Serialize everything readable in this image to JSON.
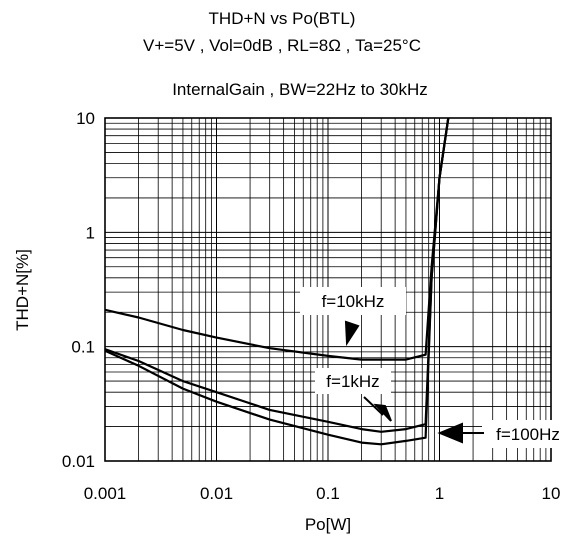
{
  "chart_data": {
    "type": "line",
    "title": "THD+N vs Po(BTL)",
    "subtitle": "V+=5V , Vol=0dB , RL=8Ω , Ta=25°C",
    "condition": "InternalGain , BW=22Hz to 30kHz",
    "xlabel": "Po[W]",
    "ylabel": "THD+N[%]",
    "xscale": "log",
    "yscale": "log",
    "xlim": [
      0.001,
      10
    ],
    "ylim": [
      0.01,
      10
    ],
    "grid": true,
    "x_ticks": [
      "0.001",
      "0.01",
      "0.1",
      "1",
      "10"
    ],
    "y_ticks": [
      "0.01",
      "0.1",
      "1",
      "10"
    ],
    "series": [
      {
        "name": "f=10kHz",
        "points": [
          [
            0.001,
            0.21
          ],
          [
            0.002,
            0.18
          ],
          [
            0.005,
            0.14
          ],
          [
            0.01,
            0.12
          ],
          [
            0.03,
            0.097
          ],
          [
            0.1,
            0.083
          ],
          [
            0.2,
            0.077
          ],
          [
            0.5,
            0.077
          ],
          [
            0.75,
            0.085
          ],
          [
            0.85,
            0.5
          ],
          [
            1.0,
            3.0
          ],
          [
            1.2,
            10
          ]
        ]
      },
      {
        "name": "f=1kHz",
        "points": [
          [
            0.001,
            0.095
          ],
          [
            0.002,
            0.075
          ],
          [
            0.005,
            0.05
          ],
          [
            0.01,
            0.04
          ],
          [
            0.03,
            0.028
          ],
          [
            0.1,
            0.022
          ],
          [
            0.2,
            0.019
          ],
          [
            0.3,
            0.018
          ],
          [
            0.5,
            0.019
          ],
          [
            0.75,
            0.021
          ],
          [
            0.85,
            0.4
          ],
          [
            1.0,
            3.0
          ],
          [
            1.2,
            10
          ]
        ]
      },
      {
        "name": "f=100Hz",
        "points": [
          [
            0.001,
            0.092
          ],
          [
            0.002,
            0.068
          ],
          [
            0.005,
            0.043
          ],
          [
            0.01,
            0.033
          ],
          [
            0.03,
            0.023
          ],
          [
            0.1,
            0.017
          ],
          [
            0.2,
            0.0145
          ],
          [
            0.3,
            0.014
          ],
          [
            0.5,
            0.015
          ],
          [
            0.75,
            0.016
          ],
          [
            0.85,
            0.4
          ],
          [
            1.0,
            3.0
          ],
          [
            1.2,
            10
          ]
        ]
      }
    ],
    "annotations": [
      "f=10kHz",
      "f=1kHz",
      "f=100Hz"
    ]
  }
}
